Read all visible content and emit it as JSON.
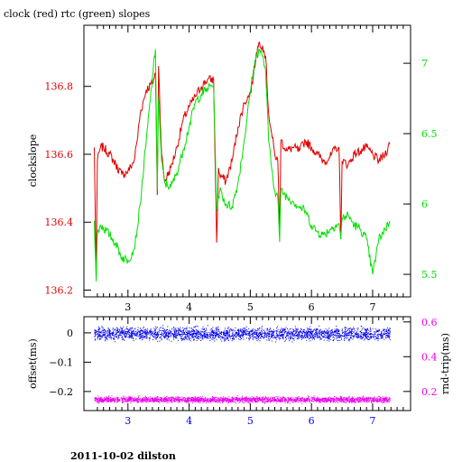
{
  "title": "clock (red) rtc (green) slopes",
  "footer": "2011-10-02 dilston",
  "colors": {
    "red": "#e00000",
    "green": "#00e000",
    "blue": "#0000ee",
    "magenta": "#ee00ee",
    "frame": "#000000"
  },
  "chart_data": [
    {
      "type": "line",
      "ylabel": "clockslope",
      "xlim": [
        2.28,
        7.62
      ],
      "ylim": [
        136.18,
        136.98
      ],
      "y2lim": [
        5.34,
        7.27
      ],
      "xticks": [
        "3",
        "4",
        "5",
        "6",
        "7"
      ],
      "yticks": [
        "136.2",
        "136.4",
        "136.6",
        "136.8"
      ],
      "y2ticks": [
        "5.5",
        "6",
        "6.5",
        "7"
      ],
      "series": [
        {
          "name": "clock",
          "color": "red",
          "axis": "left",
          "x": [
            2.45,
            2.48,
            2.5,
            2.55,
            2.6,
            2.7,
            2.8,
            2.9,
            3.0,
            3.1,
            3.15,
            3.2,
            3.3,
            3.4,
            3.45,
            3.48,
            3.5,
            3.55,
            3.6,
            3.7,
            3.8,
            3.9,
            4.0,
            4.1,
            4.2,
            4.3,
            4.4,
            4.45,
            4.48,
            4.5,
            4.6,
            4.7,
            4.8,
            4.9,
            5.0,
            5.05,
            5.1,
            5.15,
            5.2,
            5.25,
            5.3,
            5.35,
            5.4,
            5.45,
            5.48,
            5.5,
            5.6,
            5.7,
            5.8,
            5.9,
            6.0,
            6.1,
            6.2,
            6.3,
            6.4,
            6.45,
            6.48,
            6.5,
            6.6,
            6.7,
            6.8,
            6.9,
            7.0,
            7.1,
            7.2,
            7.28
          ],
          "y": [
            136.62,
            136.24,
            136.58,
            136.62,
            136.62,
            136.6,
            136.57,
            136.54,
            136.55,
            136.58,
            136.64,
            136.72,
            136.79,
            136.81,
            136.84,
            136.48,
            136.86,
            136.6,
            136.52,
            136.56,
            136.62,
            136.7,
            136.74,
            136.77,
            136.8,
            136.82,
            136.82,
            136.34,
            136.56,
            136.54,
            136.52,
            136.58,
            136.68,
            136.75,
            136.78,
            136.83,
            136.9,
            136.93,
            136.92,
            136.89,
            136.72,
            136.66,
            136.6,
            136.58,
            136.36,
            136.64,
            136.61,
            136.62,
            136.61,
            136.64,
            136.62,
            136.6,
            136.58,
            136.59,
            136.62,
            136.62,
            136.35,
            136.58,
            136.57,
            136.6,
            136.61,
            136.62,
            136.6,
            136.58,
            136.6,
            136.63
          ]
        },
        {
          "name": "rtc",
          "color": "green",
          "axis": "right",
          "x": [
            2.45,
            2.48,
            2.5,
            2.55,
            2.6,
            2.7,
            2.8,
            2.9,
            3.0,
            3.1,
            3.15,
            3.2,
            3.3,
            3.4,
            3.45,
            3.48,
            3.5,
            3.55,
            3.6,
            3.7,
            3.8,
            3.9,
            4.0,
            4.1,
            4.2,
            4.3,
            4.4,
            4.45,
            4.48,
            4.5,
            4.6,
            4.7,
            4.8,
            4.9,
            5.0,
            5.05,
            5.1,
            5.15,
            5.2,
            5.25,
            5.3,
            5.35,
            5.4,
            5.45,
            5.48,
            5.5,
            5.6,
            5.7,
            5.8,
            5.9,
            6.0,
            6.1,
            6.2,
            6.3,
            6.4,
            6.45,
            6.48,
            6.5,
            6.6,
            6.7,
            6.8,
            6.9,
            7.0,
            7.1,
            7.2,
            7.28
          ],
          "y": [
            5.88,
            5.45,
            5.8,
            5.85,
            5.83,
            5.78,
            5.72,
            5.62,
            5.6,
            5.68,
            5.82,
            6.0,
            6.45,
            6.9,
            7.1,
            6.1,
            6.75,
            6.3,
            6.15,
            6.12,
            6.22,
            6.38,
            6.55,
            6.72,
            6.78,
            6.82,
            6.85,
            5.95,
            6.05,
            6.1,
            6.0,
            5.98,
            6.15,
            6.45,
            6.8,
            6.95,
            7.05,
            7.1,
            7.05,
            6.95,
            6.45,
            6.25,
            6.1,
            6.05,
            5.73,
            6.1,
            6.05,
            6.02,
            5.98,
            5.95,
            5.85,
            5.8,
            5.78,
            5.82,
            5.85,
            5.86,
            5.75,
            5.9,
            5.92,
            5.85,
            5.82,
            5.75,
            5.5,
            5.75,
            5.82,
            5.88
          ]
        }
      ]
    },
    {
      "type": "scatter",
      "ylabel": "offset(ms)",
      "y2label": "rnd-trip(ms)",
      "xlim": [
        2.28,
        7.62
      ],
      "ylim": [
        -0.265,
        0.055
      ],
      "y2lim": [
        0.09,
        0.63
      ],
      "xticks": [
        "3",
        "4",
        "5",
        "6",
        "7"
      ],
      "yticks": [
        "0",
        "−0.1",
        "−0.2"
      ],
      "y2ticks": [
        "0.2",
        "0.4",
        "0.6"
      ],
      "series": [
        {
          "name": "offset",
          "color": "blue",
          "axis": "left",
          "x_range": [
            2.45,
            7.28
          ],
          "center": -0.002,
          "spread": 0.026
        },
        {
          "name": "rnd-trip",
          "color": "magenta",
          "axis": "right",
          "x_range": [
            2.45,
            7.28
          ],
          "center": 0.155,
          "spread": 0.02
        }
      ]
    }
  ]
}
